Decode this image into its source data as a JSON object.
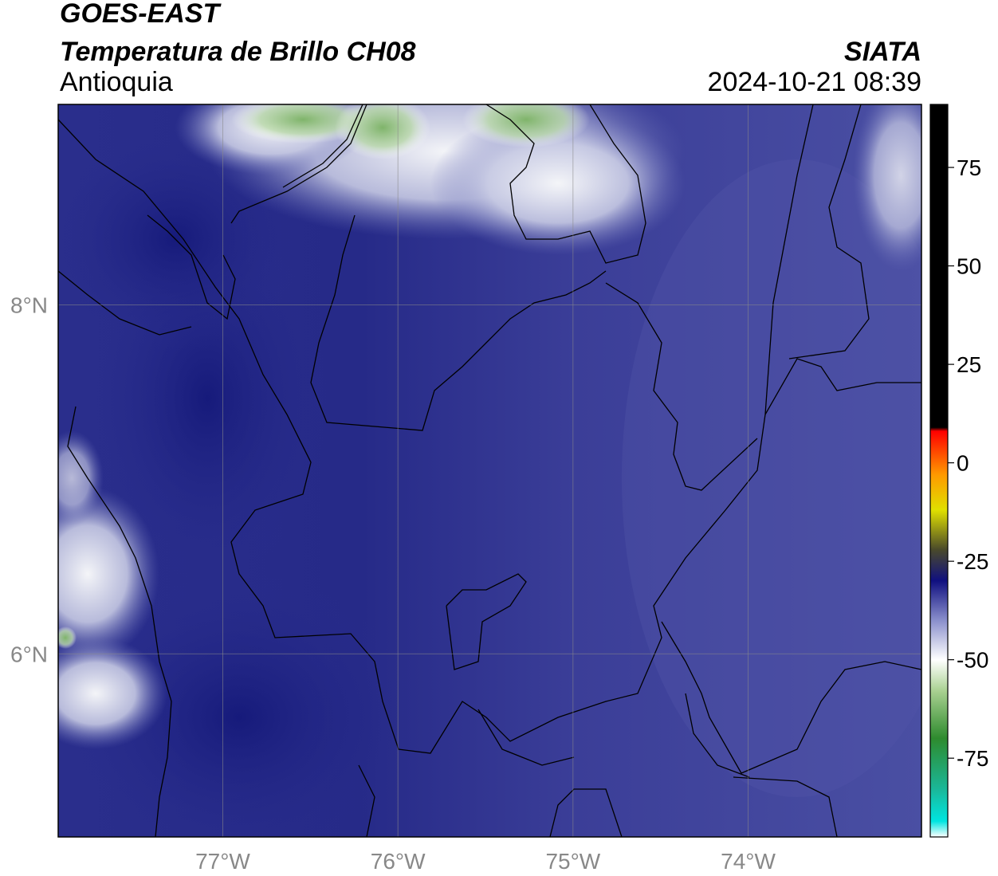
{
  "header": {
    "satellite": "GOES-EAST",
    "product": "Temperatura de Brillo CH08",
    "region": "Antioquia",
    "organization": "SIATA",
    "datetime": "2024-10-21 08:39"
  },
  "map": {
    "lon_range": [
      -77.94,
      -73.01
    ],
    "lat_range": [
      4.95,
      9.15
    ],
    "lon_ticks": [
      {
        "value": -77,
        "label": "77°W"
      },
      {
        "value": -76,
        "label": "76°W"
      },
      {
        "value": -75,
        "label": "75°W"
      },
      {
        "value": -74,
        "label": "74°W"
      }
    ],
    "lat_ticks": [
      {
        "value": 8,
        "label": "8°N"
      },
      {
        "value": 6,
        "label": "6°N"
      }
    ],
    "grid": true
  },
  "colorbar": {
    "range": [
      -95,
      91
    ],
    "ticks": [
      {
        "value": 75,
        "label": "75"
      },
      {
        "value": 50,
        "label": "50"
      },
      {
        "value": 25,
        "label": "25"
      },
      {
        "value": 0,
        "label": "0"
      },
      {
        "value": -25,
        "label": "-25"
      },
      {
        "value": -50,
        "label": "-50"
      },
      {
        "value": -75,
        "label": "-75"
      }
    ],
    "stops": [
      {
        "value": -95,
        "color": "#ffffff"
      },
      {
        "value": -91,
        "color": "#00e5e0"
      },
      {
        "value": -83,
        "color": "#1ab89a"
      },
      {
        "value": -70,
        "color": "#2e8b2e"
      },
      {
        "value": -58,
        "color": "#a8d090"
      },
      {
        "value": -50,
        "color": "#ffffff"
      },
      {
        "value": -40,
        "color": "#8a8fcc"
      },
      {
        "value": -30,
        "color": "#101080"
      },
      {
        "value": -22,
        "color": "#4a4a2a"
      },
      {
        "value": -12,
        "color": "#e0e000"
      },
      {
        "value": -3,
        "color": "#ff9900"
      },
      {
        "value": 8,
        "color": "#ff0000"
      },
      {
        "value": 9,
        "color": "#000000"
      },
      {
        "value": 91,
        "color": "#000000"
      }
    ]
  },
  "colors": {
    "cold_deep": "#1f2487",
    "mid": "#3c3f98",
    "warm_field": "#4a4fa3",
    "cloud_white": "#e8eaf2",
    "cloud_green": "#8cbf7a"
  }
}
